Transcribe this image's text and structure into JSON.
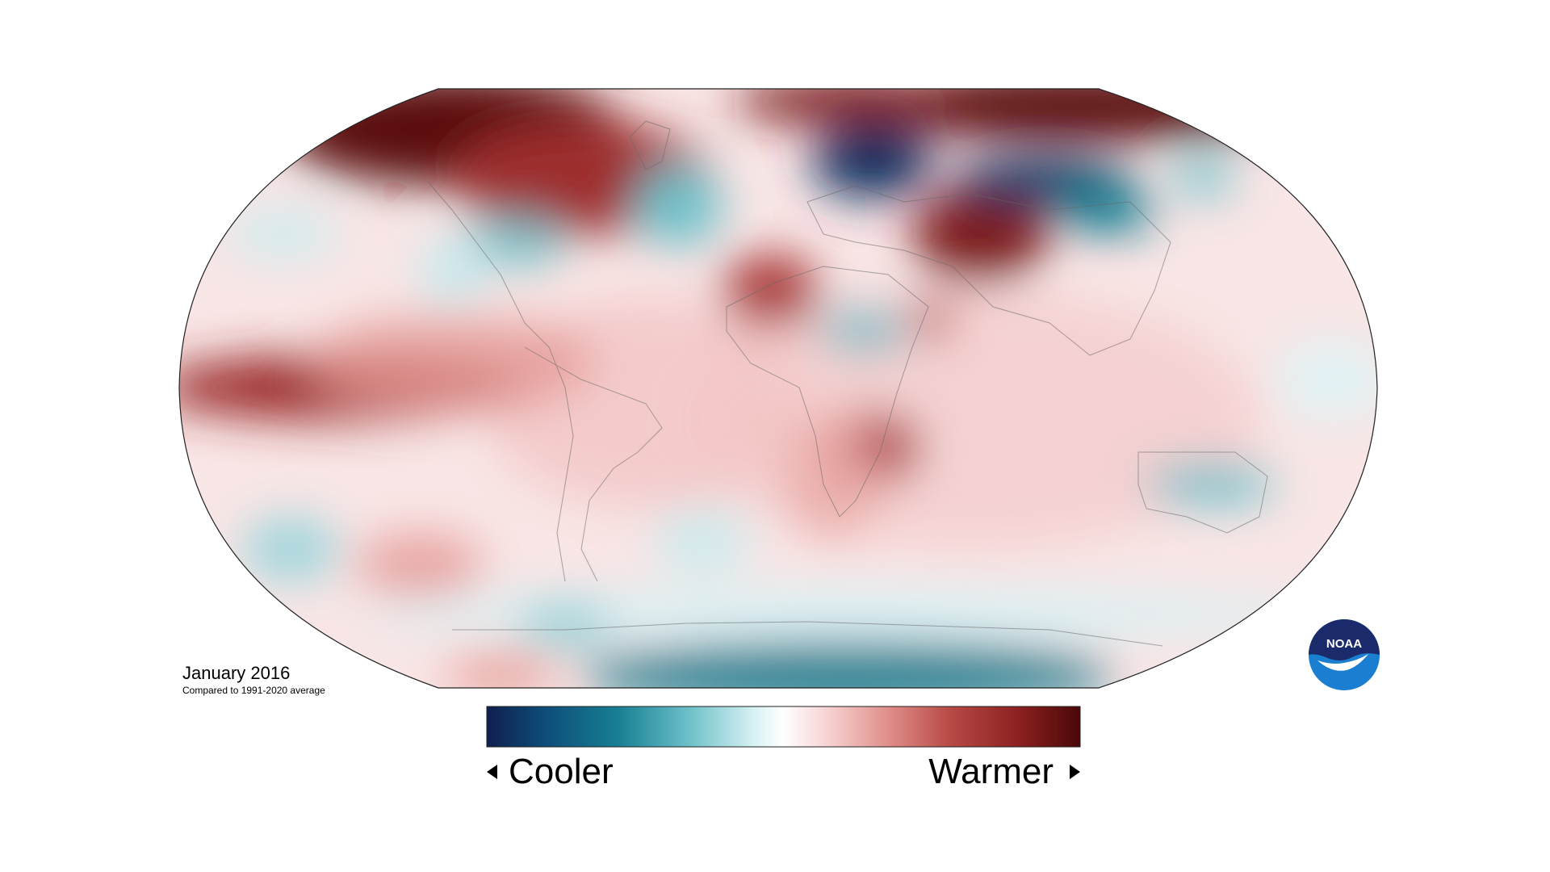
{
  "map": {
    "title": "January 2016",
    "subtitle": "Compared to 1991-2020 average",
    "projection": "Robinson",
    "variable": "temperature anomaly"
  },
  "legend": {
    "cooler_label": "Cooler",
    "warmer_label": "Warmer",
    "colors": [
      "#0f1f4f",
      "#0e4d7a",
      "#167f93",
      "#6cc0c9",
      "#d7f1f3",
      "#ffffff",
      "#f6cfcf",
      "#df8c87",
      "#b84a47",
      "#8a1f1f",
      "#4a0808"
    ]
  },
  "logo": {
    "text": "NOAA",
    "colors": {
      "top": "#1b2a6b",
      "bottom": "#1a7fd1",
      "bird": "#ffffff"
    }
  },
  "anomaly_regions": [
    {
      "name": "arctic-canada",
      "tone": "much-warmer"
    },
    {
      "name": "arctic-russia",
      "tone": "much-warmer"
    },
    {
      "name": "eastern-tropical-pacific",
      "tone": "warmer"
    },
    {
      "name": "north-africa",
      "tone": "warmer"
    },
    {
      "name": "southern-africa",
      "tone": "warmer"
    },
    {
      "name": "central-asia",
      "tone": "warmer"
    },
    {
      "name": "scandinavia-northwest-russia",
      "tone": "much-cooler"
    },
    {
      "name": "siberia",
      "tone": "much-cooler"
    },
    {
      "name": "north-atlantic",
      "tone": "cooler"
    },
    {
      "name": "eastern-north-america",
      "tone": "cooler"
    },
    {
      "name": "australia",
      "tone": "cooler"
    },
    {
      "name": "southern-ocean-antarctica",
      "tone": "cooler"
    }
  ]
}
